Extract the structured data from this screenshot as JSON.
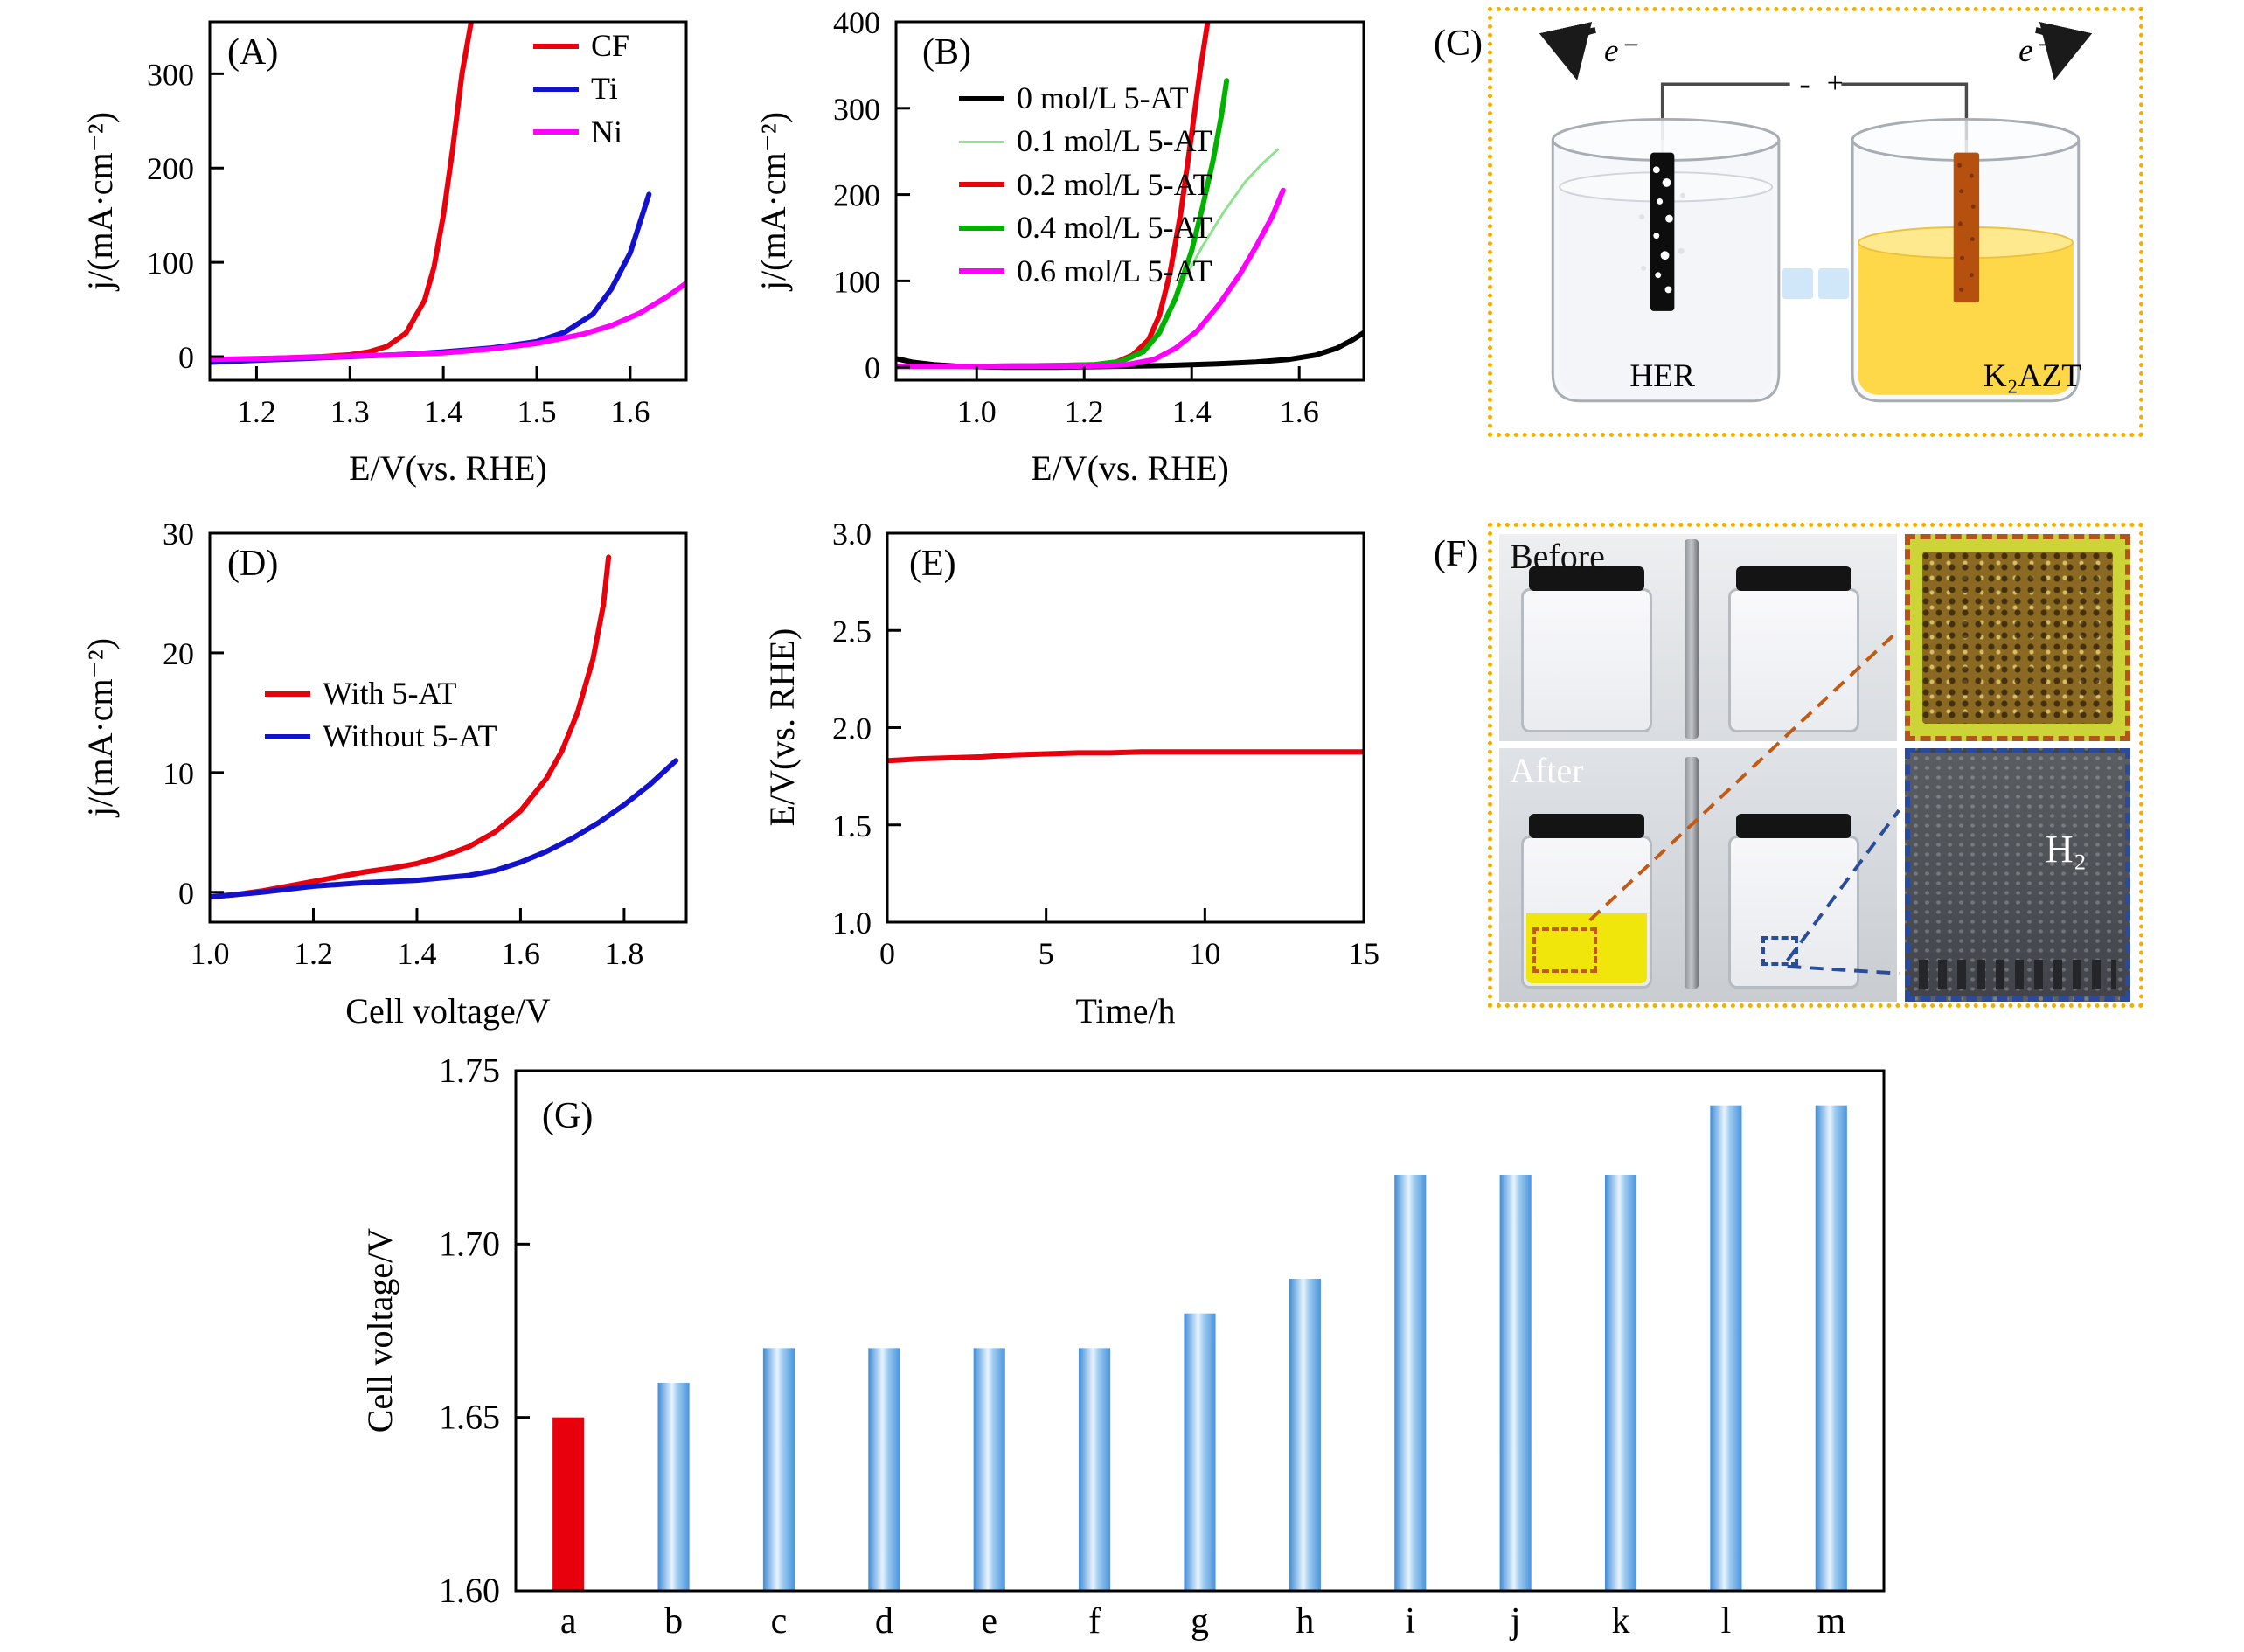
{
  "figure": {
    "panels": {
      "A": {
        "label": "(A)"
      },
      "B": {
        "label": "(B)"
      },
      "C": {
        "label": "(C)",
        "electron_left": "e⁻",
        "electron_right": "e⁻",
        "minus": "-",
        "plus": "+",
        "left_label": "HER",
        "right_label": "K₂AZT"
      },
      "D": {
        "label": "(D)"
      },
      "E": {
        "label": "(E)"
      },
      "F": {
        "label": "(F)",
        "before": "Before",
        "after": "After",
        "h2": "H₂"
      },
      "G": {
        "label": "(G)"
      }
    }
  },
  "chart_data": [
    {
      "id": "A",
      "type": "line",
      "xlabel": "E/V(vs. RHE)",
      "ylabel": "j/(mA·cm⁻²)",
      "xlim": [
        1.15,
        1.66
      ],
      "ylim": [
        -25,
        355
      ],
      "xticks": {
        "values": [
          1.2,
          1.3,
          1.4,
          1.5,
          1.6
        ],
        "labels": [
          "1.2",
          "1.3",
          "1.4",
          "1.5",
          "1.6"
        ]
      },
      "yticks": {
        "values": [
          0,
          100,
          200,
          300
        ],
        "labels": [
          "0",
          "100",
          "200",
          "300"
        ]
      },
      "margins": {
        "l": 185,
        "t": 25,
        "r": 40,
        "b": 145
      },
      "legend_position": "top-right",
      "series": [
        {
          "name": "CF",
          "color": "#e8000d",
          "width": 6,
          "x": [
            1.15,
            1.18,
            1.21,
            1.24,
            1.27,
            1.3,
            1.32,
            1.34,
            1.36,
            1.38,
            1.39,
            1.4,
            1.41,
            1.42,
            1.43
          ],
          "y": [
            -4,
            -3,
            -2,
            -1,
            0,
            2,
            5,
            11,
            25,
            60,
            95,
            150,
            220,
            300,
            356
          ]
        },
        {
          "name": "Ti",
          "color": "#1212cc",
          "width": 6,
          "x": [
            1.15,
            1.2,
            1.25,
            1.3,
            1.35,
            1.4,
            1.45,
            1.5,
            1.53,
            1.56,
            1.58,
            1.6,
            1.62
          ],
          "y": [
            -6,
            -4,
            -2,
            0,
            2,
            5,
            9,
            16,
            26,
            45,
            72,
            110,
            172
          ]
        },
        {
          "name": "Ni",
          "color": "#ff00ff",
          "width": 6,
          "x": [
            1.15,
            1.25,
            1.35,
            1.4,
            1.45,
            1.5,
            1.55,
            1.58,
            1.61,
            1.64,
            1.66
          ],
          "y": [
            -3,
            -1,
            2,
            4,
            8,
            14,
            24,
            33,
            46,
            64,
            78
          ]
        }
      ]
    },
    {
      "id": "B",
      "type": "line",
      "xlabel": "E/V(vs. RHE)",
      "ylabel": "j/(mA·cm⁻²)",
      "xlim": [
        0.85,
        1.72
      ],
      "ylim": [
        -15,
        400
      ],
      "xticks": {
        "values": [
          1.0,
          1.2,
          1.4,
          1.6
        ],
        "labels": [
          "1.0",
          "1.2",
          "1.4",
          "1.6"
        ]
      },
      "yticks": {
        "values": [
          0,
          100,
          200,
          300,
          400
        ],
        "labels": [
          "0",
          "100",
          "200",
          "300",
          "400"
        ]
      },
      "margins": {
        "l": 180,
        "t": 25,
        "r": 75,
        "b": 145
      },
      "legend_position": "top-left",
      "series": [
        {
          "name": "0 mol/L 5-AT",
          "color": "#000000",
          "width": 6,
          "x": [
            0.85,
            0.88,
            0.92,
            0.97,
            1.05,
            1.15,
            1.25,
            1.35,
            1.45,
            1.52,
            1.58,
            1.63,
            1.67,
            1.7,
            1.72
          ],
          "y": [
            10,
            6,
            3,
            1,
            0,
            0,
            1,
            2,
            4,
            6,
            9,
            14,
            22,
            32,
            40
          ]
        },
        {
          "name": "0.1 mol/L 5-AT",
          "color": "#8fe08f",
          "width": 3,
          "x": [
            0.85,
            1.0,
            1.15,
            1.24,
            1.28,
            1.31,
            1.34,
            1.38,
            1.42,
            1.46,
            1.5,
            1.53,
            1.56
          ],
          "y": [
            1,
            1,
            1,
            2,
            8,
            20,
            45,
            95,
            140,
            180,
            215,
            235,
            252
          ]
        },
        {
          "name": "0.2 mol/L 5-AT",
          "color": "#e8000d",
          "width": 6,
          "x": [
            0.85,
            1.0,
            1.15,
            1.22,
            1.26,
            1.29,
            1.32,
            1.34,
            1.36,
            1.38,
            1.4,
            1.415,
            1.43
          ],
          "y": [
            1,
            1,
            2,
            3,
            6,
            14,
            32,
            60,
            110,
            180,
            270,
            340,
            401
          ]
        },
        {
          "name": "0.4 mol/L 5-AT",
          "color": "#00b200",
          "width": 6,
          "x": [
            0.85,
            1.0,
            1.15,
            1.22,
            1.27,
            1.31,
            1.34,
            1.37,
            1.4,
            1.42,
            1.44,
            1.455,
            1.465
          ],
          "y": [
            1,
            1,
            2,
            3,
            7,
            18,
            40,
            80,
            135,
            185,
            240,
            290,
            332
          ]
        },
        {
          "name": "0.6 mol/L 5-AT",
          "color": "#ff00ff",
          "width": 6,
          "x": [
            0.85,
            1.0,
            1.2,
            1.28,
            1.33,
            1.37,
            1.41,
            1.45,
            1.49,
            1.52,
            1.55,
            1.57
          ],
          "y": [
            1,
            1,
            1,
            3,
            9,
            22,
            42,
            72,
            108,
            140,
            175,
            205
          ]
        }
      ]
    },
    {
      "id": "D",
      "type": "line",
      "xlabel": "Cell voltage/V",
      "ylabel": "j/(mA·cm⁻²)",
      "xlim": [
        1.0,
        1.92
      ],
      "ylim": [
        -2.5,
        30
      ],
      "xticks": {
        "values": [
          1.0,
          1.2,
          1.4,
          1.6,
          1.8
        ],
        "labels": [
          "1.0",
          "1.2",
          "1.4",
          "1.6",
          "1.8"
        ]
      },
      "yticks": {
        "values": [
          0,
          10,
          20,
          30
        ],
        "labels": [
          "0",
          "10",
          "20",
          "30"
        ]
      },
      "margins": {
        "l": 185,
        "t": 25,
        "r": 40,
        "b": 120
      },
      "legend_position": "middle-left",
      "series": [
        {
          "name": "With 5-AT",
          "color": "#e8000d",
          "width": 6,
          "x": [
            1.0,
            1.05,
            1.1,
            1.15,
            1.2,
            1.25,
            1.3,
            1.35,
            1.4,
            1.45,
            1.5,
            1.55,
            1.6,
            1.65,
            1.68,
            1.71,
            1.74,
            1.76,
            1.77
          ],
          "y": [
            -0.4,
            -0.2,
            0.1,
            0.5,
            0.9,
            1.3,
            1.7,
            2.0,
            2.4,
            3.0,
            3.8,
            5.0,
            6.8,
            9.5,
            11.8,
            15.0,
            19.5,
            24.0,
            28.0
          ]
        },
        {
          "name": "Without 5-AT",
          "color": "#1212cc",
          "width": 6,
          "x": [
            1.0,
            1.1,
            1.2,
            1.3,
            1.4,
            1.5,
            1.55,
            1.6,
            1.65,
            1.7,
            1.75,
            1.8,
            1.85,
            1.9
          ],
          "y": [
            -0.4,
            0.0,
            0.5,
            0.8,
            1.0,
            1.4,
            1.8,
            2.5,
            3.4,
            4.5,
            5.8,
            7.3,
            9.0,
            11.0
          ]
        }
      ]
    },
    {
      "id": "E",
      "type": "line",
      "xlabel": "Time/h",
      "ylabel": "E/V(vs. RHE)",
      "xlim": [
        0,
        15
      ],
      "ylim": [
        1.0,
        3.0
      ],
      "xticks": {
        "values": [
          0,
          5,
          10,
          15
        ],
        "labels": [
          "0",
          "5",
          "10",
          "15"
        ]
      },
      "yticks": {
        "values": [
          1.0,
          1.5,
          2.0,
          2.5,
          3.0
        ],
        "labels": [
          "1.0",
          "1.5",
          "2.0",
          "2.5",
          "3.0"
        ]
      },
      "margins": {
        "l": 170,
        "t": 25,
        "r": 75,
        "b": 120
      },
      "series": [
        {
          "color": "#e8000d",
          "width": 6,
          "x": [
            0,
            0.5,
            1,
            2,
            3,
            4,
            5,
            6,
            7,
            8,
            9,
            10,
            11,
            12,
            13,
            14,
            15
          ],
          "y": [
            1.83,
            1.835,
            1.84,
            1.845,
            1.85,
            1.86,
            1.865,
            1.87,
            1.87,
            1.875,
            1.875,
            1.875,
            1.875,
            1.875,
            1.875,
            1.875,
            1.875
          ]
        }
      ]
    },
    {
      "id": "G",
      "type": "bar",
      "xlabel": "",
      "ylabel": "Cell voltage/V",
      "categories": [
        "a",
        "b",
        "c",
        "d",
        "e",
        "f",
        "g",
        "h",
        "i",
        "j",
        "k",
        "l",
        "m"
      ],
      "values": [
        1.65,
        1.66,
        1.67,
        1.67,
        1.67,
        1.67,
        1.68,
        1.69,
        1.72,
        1.72,
        1.72,
        1.74,
        1.74
      ],
      "bar_colors": [
        "#e8000d",
        "gradient",
        "gradient",
        "gradient",
        "gradient",
        "gradient",
        "gradient",
        "gradient",
        "gradient",
        "gradient",
        "gradient",
        "gradient",
        "gradient"
      ],
      "bar_gradient": [
        "#3f8cd6",
        "#e8f4ff",
        "#9fccf0",
        "#4a94dd"
      ],
      "bar_width_frac": 0.3,
      "xlim": [
        0,
        13
      ],
      "ylim": [
        1.6,
        1.75
      ],
      "yticks": {
        "values": [
          1.6,
          1.65,
          1.7,
          1.75
        ],
        "labels": [
          "1.60",
          "1.65",
          "1.70",
          "1.75"
        ]
      },
      "margins": {
        "l": 220,
        "t": 30,
        "r": 115,
        "b": 70
      },
      "tick_font": 40
    }
  ]
}
